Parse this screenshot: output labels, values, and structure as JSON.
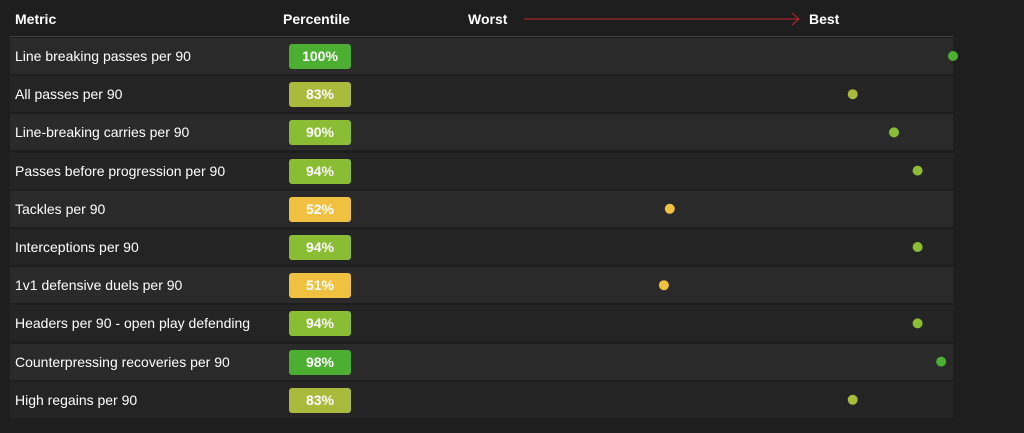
{
  "header": {
    "metric": "Metric",
    "percentile": "Percentile",
    "worst": "Worst",
    "best": "Best"
  },
  "colors": {
    "high": "#4caf32",
    "good": "#8bbd34",
    "mid_high": "#a8bb3c",
    "mid": "#f0c040",
    "track_low": "#555555",
    "track_high": "#c0282a",
    "arrow": "#c0282a"
  },
  "chart_data": {
    "type": "scatter",
    "xlim": [
      0,
      100
    ],
    "series": [
      {
        "values": [
          100,
          83,
          90,
          94,
          52,
          94,
          51,
          94,
          98,
          83
        ]
      }
    ],
    "categories": [
      "Line breaking passes per 90",
      "All passes per 90",
      "Line-breaking carries per 90",
      "Passes before progression per 90",
      "Tackles per 90",
      "Interceptions per 90",
      "1v1 defensive duels per 90",
      "Headers per 90 - open play defending",
      "Counterpressing recoveries per 90",
      "High regains per 90"
    ],
    "labels": [
      "100%",
      "83%",
      "90%",
      "94%",
      "52%",
      "94%",
      "51%",
      "94%",
      "98%",
      "83%"
    ]
  }
}
